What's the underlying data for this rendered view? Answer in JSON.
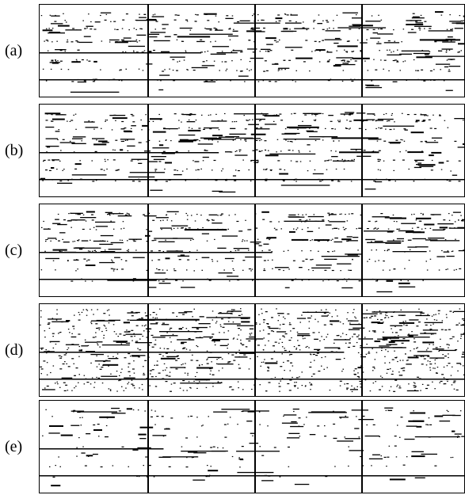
{
  "rows": [
    {
      "label": "(a)",
      "style": "clean",
      "seed": 11
    },
    {
      "label": "(b)",
      "style": "clean",
      "seed": 23
    },
    {
      "label": "(c)",
      "style": "clean",
      "seed": 37
    },
    {
      "label": "(d)",
      "style": "noisy",
      "seed": 41
    },
    {
      "label": "(e)",
      "style": "sparse",
      "seed": 53
    }
  ],
  "note_color": "#000000"
}
